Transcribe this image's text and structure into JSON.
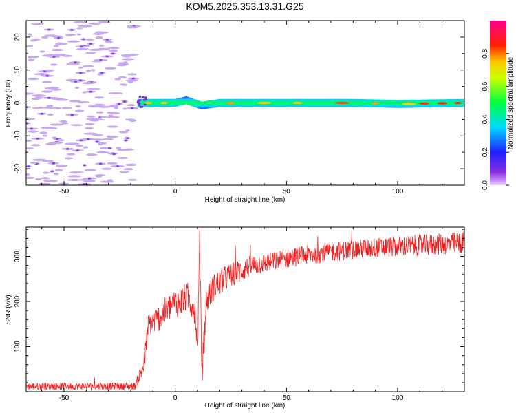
{
  "title": "KOM5.2025.353.13.31.G25",
  "colors": {
    "snr_line": "#ee2222",
    "noise_speckle": "#c8a8ee",
    "noise_core": "#8a3cf0"
  },
  "chart_data": [
    {
      "type": "heatmap",
      "title": "KOM5.2025.353.13.31.G25",
      "xlabel": "Height of straight line (km)",
      "ylabel": "Frequency (Hz)",
      "xlim": [
        -67,
        130
      ],
      "ylim": [
        -25,
        25
      ],
      "x_ticks": [
        -50,
        0,
        50,
        100
      ],
      "y_ticks": [
        -20,
        -10,
        0,
        10,
        20
      ],
      "grid": false,
      "colorbar": {
        "label": "Normalized spectral amplitude",
        "range": [
          0,
          1
        ],
        "ticks": [
          "0.0",
          "0.2",
          "0.4",
          "0.6",
          "0.8"
        ],
        "colormap": "rainbow (magenta-blue-cyan-green-yellow-orange-red-pink)"
      },
      "noise_region_x": [
        -67,
        -18
      ],
      "signal_band": {
        "x_start": -17,
        "x_end": 130,
        "center_frequency_points": [
          [
            -17,
            0
          ],
          [
            0,
            0
          ],
          [
            5,
            0.8
          ],
          [
            12,
            -0.8
          ],
          [
            20,
            0
          ],
          [
            60,
            0
          ],
          [
            80,
            0
          ],
          [
            100,
            -0.3
          ],
          [
            130,
            0
          ]
        ],
        "half_width_hz": 1.2,
        "peak_amplitude": 1.0
      }
    },
    {
      "type": "line",
      "xlabel": "Height of straight line (km)",
      "ylabel": "SNR (v/v)",
      "xlim": [
        -67,
        130
      ],
      "ylim": [
        0,
        365
      ],
      "x_ticks": [
        -50,
        0,
        50,
        100
      ],
      "y_ticks": [
        100,
        200,
        300
      ],
      "grid": false,
      "series": [
        {
          "points": [
            [
              -67,
              12
            ],
            [
              -30,
              12
            ],
            [
              -18,
              12
            ],
            [
              -14,
              60
            ],
            [
              -12,
              150
            ],
            [
              -8,
              160
            ],
            [
              -2,
              190
            ],
            [
              2,
              200
            ],
            [
              6,
              210
            ],
            [
              9,
              180
            ],
            [
              10,
              90
            ],
            [
              11,
              330
            ],
            [
              12,
              40
            ],
            [
              14,
              200
            ],
            [
              17,
              230
            ],
            [
              22,
              250
            ],
            [
              28,
              265
            ],
            [
              35,
              280
            ],
            [
              45,
              290
            ],
            [
              55,
              300
            ],
            [
              70,
              310
            ],
            [
              85,
              318
            ],
            [
              100,
              322
            ],
            [
              115,
              326
            ],
            [
              130,
              330
            ]
          ],
          "noise_amplitude": [
            [
              -67,
              8
            ],
            [
              -18,
              8
            ],
            [
              -14,
              25
            ],
            [
              0,
              35
            ],
            [
              20,
              30
            ],
            [
              40,
              22
            ],
            [
              80,
              22
            ],
            [
              130,
              25
            ]
          ]
        }
      ]
    }
  ]
}
